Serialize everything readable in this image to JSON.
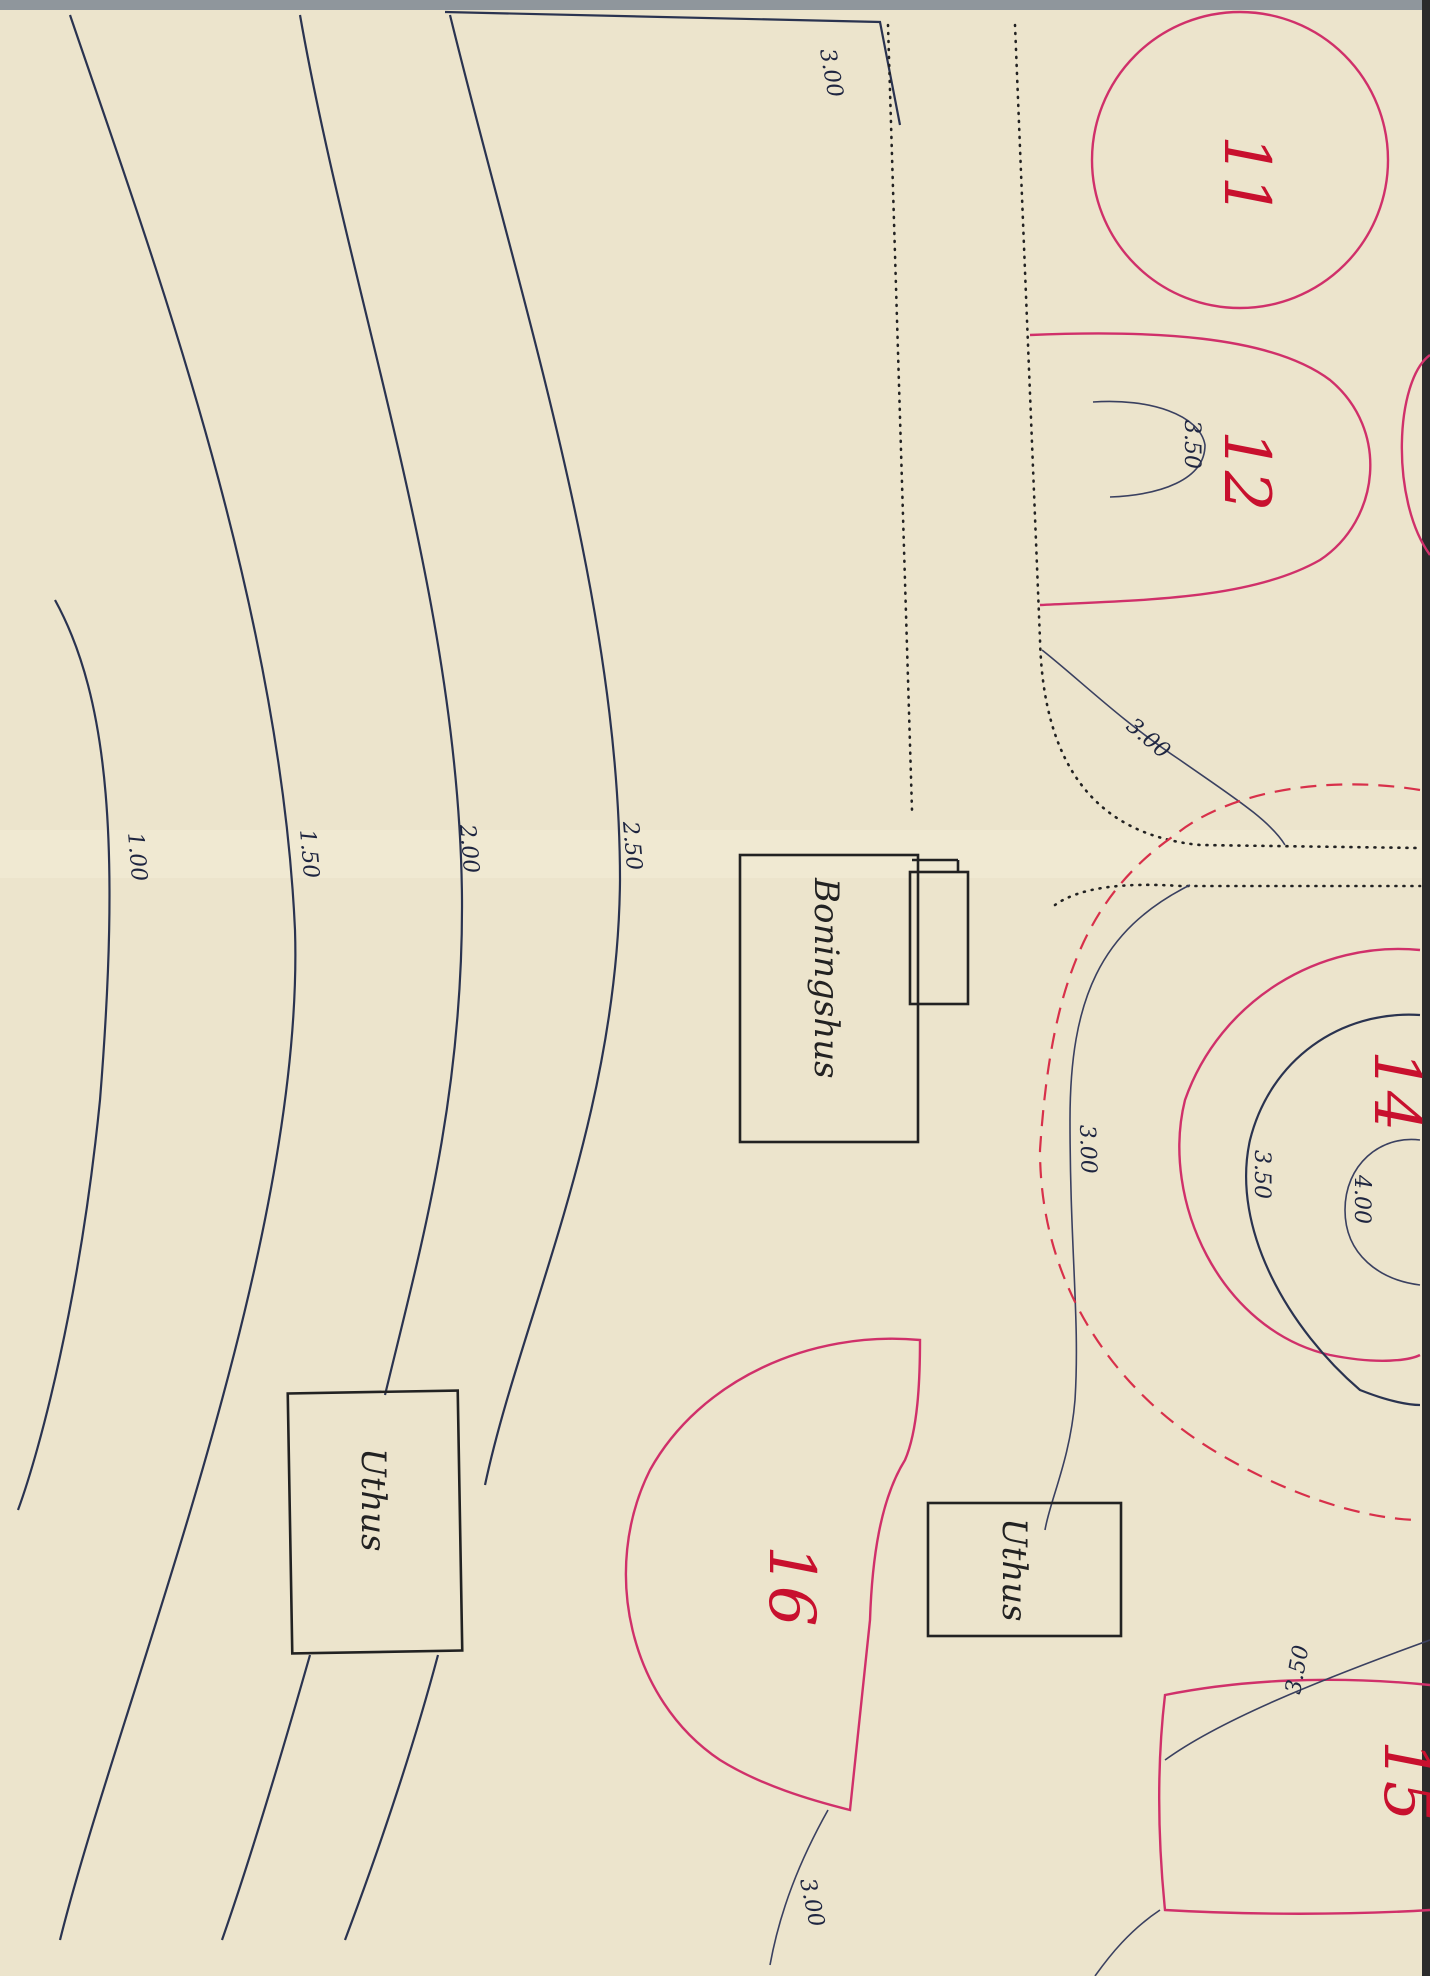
{
  "map": {
    "contour_labels": {
      "c100": "1.00",
      "c150": "1.50",
      "c200": "2.00",
      "c250": "2.50",
      "c300_top": "3.00",
      "c300_mid": "3.00",
      "c300_center": "3.00",
      "c300_bottom": "3.00",
      "c350_mound12": "3.50",
      "c350_mound14": "3.50",
      "c400_mound14": "4.00",
      "c350_mound15": "3.50"
    },
    "buildings": {
      "boningshus": "Boningshus",
      "uthus_left": "Uthus",
      "uthus_right": "Uthus"
    },
    "mounds": {
      "m11": "11",
      "m12": "12",
      "m14": "14",
      "m15": "15",
      "m16": "16"
    },
    "colors": {
      "paper": "#ece4cc",
      "contour_ink": "#2a3350",
      "mound_outline": "#d0306a",
      "mound_number": "#c8102e",
      "boundary_dashed": "#d8304a"
    }
  }
}
